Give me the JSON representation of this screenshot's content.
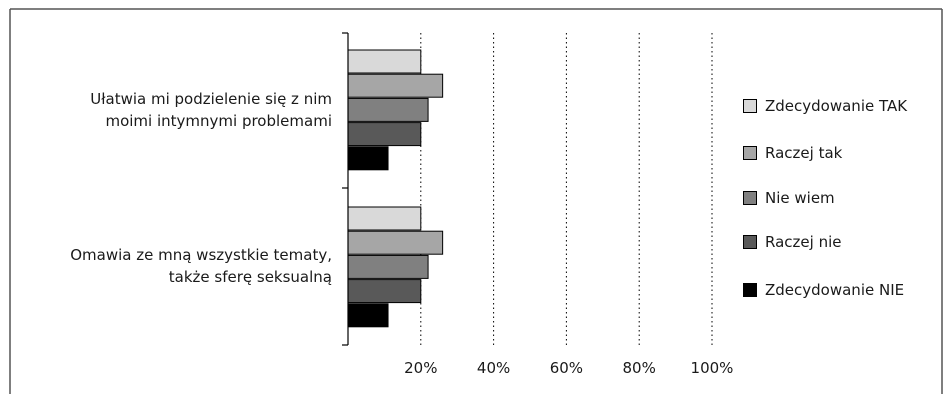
{
  "chart_data": {
    "type": "bar",
    "orientation": "horizontal",
    "categories": [
      [
        "Ułatwia mi podzielenie się z nim",
        "moimi intymnymi problemami"
      ],
      [
        "Omawia ze mną wszystkie tematy,",
        "także sferę seksualną"
      ]
    ],
    "series": [
      {
        "name": "Zdecydowanie TAK",
        "color": "#d9d9d9",
        "values": [
          20,
          20
        ]
      },
      {
        "name": "Raczej tak",
        "color": "#a6a6a6",
        "values": [
          26,
          26
        ]
      },
      {
        "name": "Nie wiem",
        "color": "#808080",
        "values": [
          22,
          22
        ]
      },
      {
        "name": "Raczej nie",
        "color": "#595959",
        "values": [
          20,
          20
        ]
      },
      {
        "name": "Zdecydowanie NIE",
        "color": "#000000",
        "values": [
          11,
          11
        ]
      }
    ],
    "xticks": [
      "20%",
      "40%",
      "60%",
      "80%",
      "100%"
    ],
    "xlim": [
      0,
      100
    ],
    "grid": "vertical dotted",
    "legend_position": "right"
  }
}
